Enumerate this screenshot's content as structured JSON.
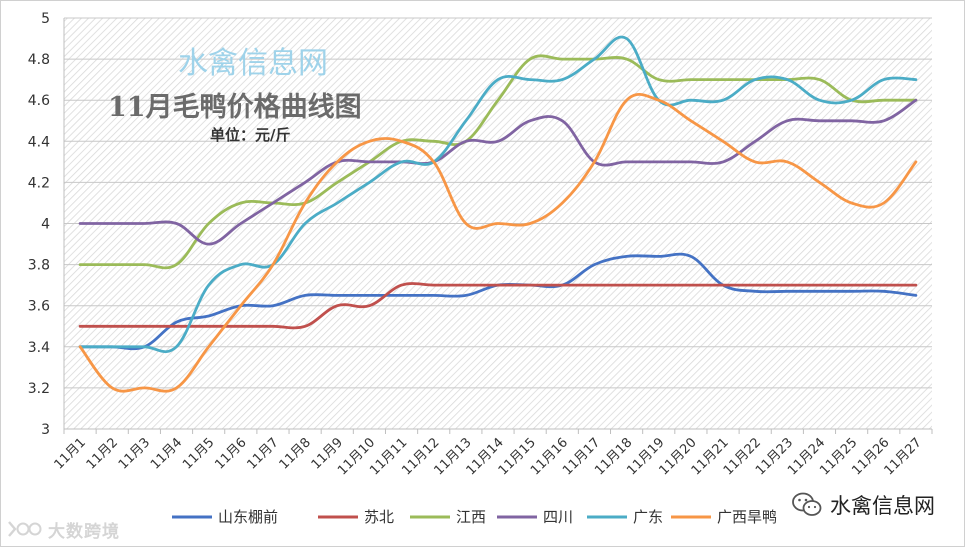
{
  "chart_data": {
    "type": "line",
    "title": "11月毛鸭价格曲线图",
    "unit_label": "单位：元/斤",
    "watermark": "水禽信息网",
    "ylim": [
      3,
      5
    ],
    "y_ticks": [
      "3",
      "3.2",
      "3.4",
      "3.6",
      "3.8",
      "4",
      "4.2",
      "4.4",
      "4.6",
      "4.8",
      "5"
    ],
    "categories": [
      "11月1",
      "11月2",
      "11月3",
      "11月4",
      "11月5",
      "11月6",
      "11月7",
      "11月8",
      "11月9",
      "11月10",
      "11月11",
      "11月12",
      "11月13",
      "11月14",
      "11月15",
      "11月16",
      "11月17",
      "11月18",
      "11月19",
      "11月20",
      "11月21",
      "11月22",
      "11月23",
      "11月24",
      "11月25",
      "11月26",
      "11月27"
    ],
    "legend_position": "bottom",
    "series": [
      {
        "name": "山东棚前",
        "color": "#4472c4",
        "values": [
          3.4,
          3.4,
          3.4,
          3.52,
          3.55,
          3.6,
          3.6,
          3.65,
          3.65,
          3.65,
          3.65,
          3.65,
          3.65,
          3.7,
          3.7,
          3.7,
          3.8,
          3.84,
          3.84,
          3.84,
          3.7,
          3.67,
          3.67,
          3.67,
          3.67,
          3.67,
          3.65
        ]
      },
      {
        "name": "苏北",
        "color": "#c0504d",
        "values": [
          3.5,
          3.5,
          3.5,
          3.5,
          3.5,
          3.5,
          3.5,
          3.5,
          3.6,
          3.6,
          3.7,
          3.7,
          3.7,
          3.7,
          3.7,
          3.7,
          3.7,
          3.7,
          3.7,
          3.7,
          3.7,
          3.7,
          3.7,
          3.7,
          3.7,
          3.7,
          3.7
        ]
      },
      {
        "name": "江西",
        "color": "#9bbb59",
        "values": [
          3.8,
          3.8,
          3.8,
          3.8,
          4.0,
          4.1,
          4.1,
          4.1,
          4.2,
          4.3,
          4.4,
          4.4,
          4.4,
          4.6,
          4.8,
          4.8,
          4.8,
          4.8,
          4.7,
          4.7,
          4.7,
          4.7,
          4.7,
          4.7,
          4.6,
          4.6,
          4.6
        ]
      },
      {
        "name": "四川",
        "color": "#8064a2",
        "values": [
          4.0,
          4.0,
          4.0,
          4.0,
          3.9,
          4.0,
          4.1,
          4.2,
          4.3,
          4.3,
          4.3,
          4.3,
          4.4,
          4.4,
          4.5,
          4.5,
          4.3,
          4.3,
          4.3,
          4.3,
          4.3,
          4.4,
          4.5,
          4.5,
          4.5,
          4.5,
          4.6
        ]
      },
      {
        "name": "广东",
        "color": "#4bacc6",
        "values": [
          3.4,
          3.4,
          3.4,
          3.4,
          3.7,
          3.8,
          3.8,
          4.0,
          4.1,
          4.2,
          4.3,
          4.3,
          4.5,
          4.7,
          4.7,
          4.7,
          4.8,
          4.9,
          4.6,
          4.6,
          4.6,
          4.7,
          4.7,
          4.6,
          4.6,
          4.7,
          4.7
        ]
      },
      {
        "name": "广西旱鸭",
        "color": "#f79646",
        "values": [
          3.4,
          3.2,
          3.2,
          3.2,
          3.4,
          3.6,
          3.8,
          4.1,
          4.3,
          4.4,
          4.4,
          4.3,
          4.0,
          4.0,
          4.0,
          4.1,
          4.3,
          4.6,
          4.6,
          4.5,
          4.4,
          4.3,
          4.3,
          4.2,
          4.1,
          4.1,
          4.3
        ]
      }
    ]
  },
  "footer": {
    "wechat_name": "水禽信息网",
    "logo_text": "大数跨境"
  }
}
